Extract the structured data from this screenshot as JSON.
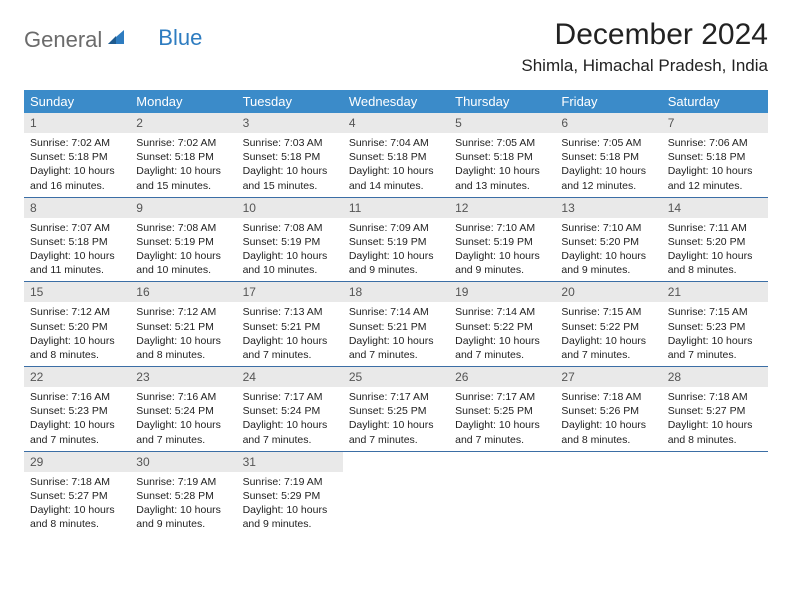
{
  "brand": {
    "text_gray": "General",
    "text_blue": "Blue"
  },
  "title": "December 2024",
  "location": "Shimla, Himachal Pradesh, India",
  "colors": {
    "header_bg": "#3b8bc9",
    "header_text": "#ffffff",
    "daynum_bg": "#e9e9e9",
    "row_border": "#3b6ea5",
    "logo_gray": "#6b6b6b",
    "logo_blue": "#2e7cc0"
  },
  "weekdays": [
    "Sunday",
    "Monday",
    "Tuesday",
    "Wednesday",
    "Thursday",
    "Friday",
    "Saturday"
  ],
  "days": [
    {
      "n": 1,
      "sr": "7:02 AM",
      "ss": "5:18 PM",
      "dl": "10 hours and 16 minutes."
    },
    {
      "n": 2,
      "sr": "7:02 AM",
      "ss": "5:18 PM",
      "dl": "10 hours and 15 minutes."
    },
    {
      "n": 3,
      "sr": "7:03 AM",
      "ss": "5:18 PM",
      "dl": "10 hours and 15 minutes."
    },
    {
      "n": 4,
      "sr": "7:04 AM",
      "ss": "5:18 PM",
      "dl": "10 hours and 14 minutes."
    },
    {
      "n": 5,
      "sr": "7:05 AM",
      "ss": "5:18 PM",
      "dl": "10 hours and 13 minutes."
    },
    {
      "n": 6,
      "sr": "7:05 AM",
      "ss": "5:18 PM",
      "dl": "10 hours and 12 minutes."
    },
    {
      "n": 7,
      "sr": "7:06 AM",
      "ss": "5:18 PM",
      "dl": "10 hours and 12 minutes."
    },
    {
      "n": 8,
      "sr": "7:07 AM",
      "ss": "5:18 PM",
      "dl": "10 hours and 11 minutes."
    },
    {
      "n": 9,
      "sr": "7:08 AM",
      "ss": "5:19 PM",
      "dl": "10 hours and 10 minutes."
    },
    {
      "n": 10,
      "sr": "7:08 AM",
      "ss": "5:19 PM",
      "dl": "10 hours and 10 minutes."
    },
    {
      "n": 11,
      "sr": "7:09 AM",
      "ss": "5:19 PM",
      "dl": "10 hours and 9 minutes."
    },
    {
      "n": 12,
      "sr": "7:10 AM",
      "ss": "5:19 PM",
      "dl": "10 hours and 9 minutes."
    },
    {
      "n": 13,
      "sr": "7:10 AM",
      "ss": "5:20 PM",
      "dl": "10 hours and 9 minutes."
    },
    {
      "n": 14,
      "sr": "7:11 AM",
      "ss": "5:20 PM",
      "dl": "10 hours and 8 minutes."
    },
    {
      "n": 15,
      "sr": "7:12 AM",
      "ss": "5:20 PM",
      "dl": "10 hours and 8 minutes."
    },
    {
      "n": 16,
      "sr": "7:12 AM",
      "ss": "5:21 PM",
      "dl": "10 hours and 8 minutes."
    },
    {
      "n": 17,
      "sr": "7:13 AM",
      "ss": "5:21 PM",
      "dl": "10 hours and 7 minutes."
    },
    {
      "n": 18,
      "sr": "7:14 AM",
      "ss": "5:21 PM",
      "dl": "10 hours and 7 minutes."
    },
    {
      "n": 19,
      "sr": "7:14 AM",
      "ss": "5:22 PM",
      "dl": "10 hours and 7 minutes."
    },
    {
      "n": 20,
      "sr": "7:15 AM",
      "ss": "5:22 PM",
      "dl": "10 hours and 7 minutes."
    },
    {
      "n": 21,
      "sr": "7:15 AM",
      "ss": "5:23 PM",
      "dl": "10 hours and 7 minutes."
    },
    {
      "n": 22,
      "sr": "7:16 AM",
      "ss": "5:23 PM",
      "dl": "10 hours and 7 minutes."
    },
    {
      "n": 23,
      "sr": "7:16 AM",
      "ss": "5:24 PM",
      "dl": "10 hours and 7 minutes."
    },
    {
      "n": 24,
      "sr": "7:17 AM",
      "ss": "5:24 PM",
      "dl": "10 hours and 7 minutes."
    },
    {
      "n": 25,
      "sr": "7:17 AM",
      "ss": "5:25 PM",
      "dl": "10 hours and 7 minutes."
    },
    {
      "n": 26,
      "sr": "7:17 AM",
      "ss": "5:25 PM",
      "dl": "10 hours and 7 minutes."
    },
    {
      "n": 27,
      "sr": "7:18 AM",
      "ss": "5:26 PM",
      "dl": "10 hours and 8 minutes."
    },
    {
      "n": 28,
      "sr": "7:18 AM",
      "ss": "5:27 PM",
      "dl": "10 hours and 8 minutes."
    },
    {
      "n": 29,
      "sr": "7:18 AM",
      "ss": "5:27 PM",
      "dl": "10 hours and 8 minutes."
    },
    {
      "n": 30,
      "sr": "7:19 AM",
      "ss": "5:28 PM",
      "dl": "10 hours and 9 minutes."
    },
    {
      "n": 31,
      "sr": "7:19 AM",
      "ss": "5:29 PM",
      "dl": "10 hours and 9 minutes."
    }
  ],
  "labels": {
    "sunrise": "Sunrise:",
    "sunset": "Sunset:",
    "daylight": "Daylight:"
  },
  "layout": {
    "first_weekday_index": 0,
    "cols": 7
  }
}
